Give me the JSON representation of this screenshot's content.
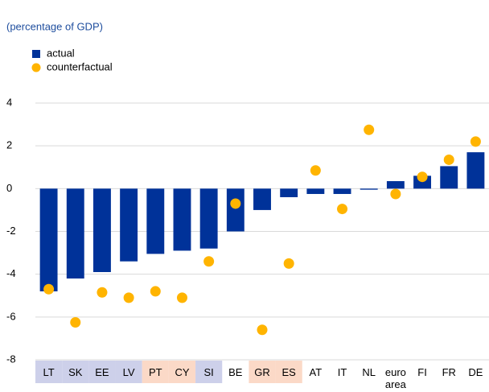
{
  "chart_data": {
    "type": "bar_scatter",
    "subtitle": "(percentage of GDP)",
    "categories": [
      "LT",
      "SK",
      "EE",
      "LV",
      "PT",
      "CY",
      "SI",
      "BE",
      "GR",
      "ES",
      "AT",
      "IT",
      "NL",
      "euro area",
      "FI",
      "FR",
      "DE"
    ],
    "label_backgrounds": [
      "#cdd0ea",
      "#cdd0ea",
      "#cdd0ea",
      "#cdd0ea",
      "#fbd9c7",
      "#fbd9c7",
      "#cdd0ea",
      null,
      "#fbd9c7",
      "#fbd9c7",
      null,
      null,
      null,
      null,
      null,
      null,
      null
    ],
    "series": [
      {
        "name": "actual",
        "type": "bar",
        "color": "#003299",
        "values": [
          -4.8,
          -4.2,
          -3.9,
          -3.4,
          -3.05,
          -2.9,
          -2.8,
          -2.0,
          -1.0,
          -0.4,
          -0.25,
          -0.25,
          -0.05,
          0.35,
          0.6,
          1.05,
          1.7
        ]
      },
      {
        "name": "counterfactual",
        "type": "scatter",
        "color": "#ffb400",
        "values": [
          -4.7,
          -6.25,
          -4.85,
          -5.1,
          -4.8,
          -5.1,
          -3.4,
          -0.7,
          -6.6,
          -3.5,
          0.85,
          -0.95,
          2.75,
          -0.25,
          0.55,
          1.35,
          2.2
        ]
      }
    ],
    "ylim": [
      -8,
      4
    ],
    "yticks": [
      -8,
      -6,
      -4,
      -2,
      0,
      2,
      4
    ],
    "grid": true
  }
}
